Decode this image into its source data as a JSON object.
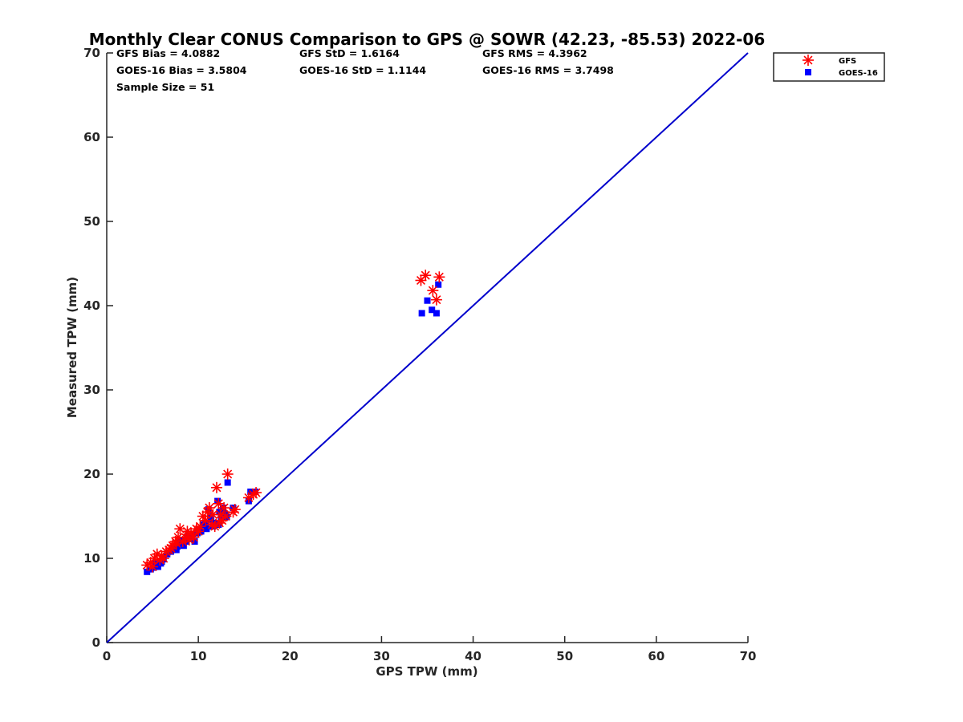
{
  "chart_data": {
    "type": "scatter",
    "title": "Monthly Clear CONUS Comparison to GPS @ SOWR (42.23, -85.53) 2022-06",
    "xlabel": "GPS TPW (mm)",
    "ylabel": "Measured TPW (mm)",
    "xlim": [
      0,
      70
    ],
    "ylim": [
      0,
      70
    ],
    "xticks": [
      0,
      10,
      20,
      30,
      40,
      50,
      60,
      70
    ],
    "yticks": [
      0,
      10,
      20,
      30,
      40,
      50,
      60,
      70
    ],
    "grid": false,
    "legend_position": "outside-top-right",
    "stats": {
      "gfs_bias": "GFS Bias = 4.0882",
      "gfs_std": "GFS StD = 1.6164",
      "gfs_rms": "GFS RMS = 4.3962",
      "goes_bias": "GOES-16 Bias = 3.5804",
      "goes_std": "GOES-16 StD = 1.1144",
      "goes_rms": "GOES-16 RMS = 3.7498",
      "sample_size": "Sample Size = 51"
    },
    "reference_line": {
      "x": [
        0,
        70
      ],
      "y": [
        0,
        70
      ],
      "color": "#0000cc"
    },
    "series": [
      {
        "name": "GFS",
        "marker": "asterisk",
        "color": "#ff0000",
        "points": [
          [
            4.4,
            9.2
          ],
          [
            4.8,
            9.5
          ],
          [
            5.2,
            10.0
          ],
          [
            5.5,
            10.5
          ],
          [
            5.8,
            9.8
          ],
          [
            6.0,
            10.3
          ],
          [
            6.5,
            10.8
          ],
          [
            6.8,
            11.0
          ],
          [
            7.2,
            11.5
          ],
          [
            7.5,
            12.0
          ],
          [
            7.8,
            12.5
          ],
          [
            8.0,
            13.5
          ],
          [
            8.3,
            12.0
          ],
          [
            8.6,
            12.5
          ],
          [
            8.9,
            12.8
          ],
          [
            9.2,
            13.0
          ],
          [
            9.5,
            12.5
          ],
          [
            9.8,
            13.5
          ],
          [
            10.2,
            13.8
          ],
          [
            10.5,
            15.0
          ],
          [
            10.8,
            14.5
          ],
          [
            11.0,
            15.5
          ],
          [
            11.2,
            16.0
          ],
          [
            11.5,
            14.0
          ],
          [
            11.8,
            13.8
          ],
          [
            12.0,
            18.4
          ],
          [
            12.2,
            16.5
          ],
          [
            12.4,
            15.2
          ],
          [
            12.6,
            14.5
          ],
          [
            12.8,
            16.0
          ],
          [
            13.2,
            20.0
          ],
          [
            13.8,
            15.5
          ],
          [
            14.0,
            15.8
          ],
          [
            15.5,
            17.2
          ],
          [
            16.0,
            17.6
          ],
          [
            16.3,
            17.8
          ],
          [
            34.3,
            43.0
          ],
          [
            34.8,
            43.6
          ],
          [
            35.6,
            41.8
          ],
          [
            36.0,
            40.7
          ],
          [
            36.3,
            43.4
          ],
          [
            6.2,
            10.0
          ],
          [
            7.0,
            11.2
          ],
          [
            9.0,
            12.2
          ],
          [
            10.0,
            13.2
          ],
          [
            11.6,
            15.2
          ],
          [
            5.0,
            9.0
          ],
          [
            7.6,
            11.8
          ],
          [
            12.3,
            14.2
          ],
          [
            13.0,
            15.0
          ],
          [
            8.8,
            13.2
          ]
        ]
      },
      {
        "name": "GOES-16",
        "marker": "square",
        "color": "#0000ff",
        "points": [
          [
            4.4,
            8.4
          ],
          [
            4.8,
            8.7
          ],
          [
            5.3,
            9.5
          ],
          [
            5.6,
            9.0
          ],
          [
            5.9,
            9.4
          ],
          [
            6.2,
            9.9
          ],
          [
            6.6,
            10.5
          ],
          [
            7.0,
            10.8
          ],
          [
            7.3,
            11.2
          ],
          [
            7.6,
            11.0
          ],
          [
            7.9,
            11.8
          ],
          [
            8.1,
            12.2
          ],
          [
            8.4,
            11.5
          ],
          [
            8.7,
            12.0
          ],
          [
            9.0,
            12.3
          ],
          [
            9.3,
            12.6
          ],
          [
            9.6,
            12.0
          ],
          [
            9.9,
            13.0
          ],
          [
            10.3,
            13.2
          ],
          [
            10.6,
            14.0
          ],
          [
            10.9,
            13.5
          ],
          [
            11.1,
            15.8
          ],
          [
            11.3,
            15.0
          ],
          [
            11.6,
            13.8
          ],
          [
            11.9,
            14.2
          ],
          [
            12.1,
            16.8
          ],
          [
            12.3,
            15.5
          ],
          [
            12.5,
            14.8
          ],
          [
            12.7,
            16.0
          ],
          [
            12.9,
            15.3
          ],
          [
            13.2,
            19.0
          ],
          [
            13.8,
            16.0
          ],
          [
            15.5,
            16.8
          ],
          [
            15.7,
            17.9
          ],
          [
            16.2,
            17.9
          ],
          [
            34.4,
            39.1
          ],
          [
            35.0,
            40.6
          ],
          [
            35.5,
            39.5
          ],
          [
            36.0,
            39.1
          ],
          [
            36.2,
            42.5
          ],
          [
            6.0,
            9.6
          ],
          [
            7.1,
            11.0
          ],
          [
            8.8,
            12.6
          ],
          [
            10.1,
            13.4
          ],
          [
            11.4,
            14.6
          ],
          [
            5.1,
            8.9
          ],
          [
            7.7,
            11.4
          ],
          [
            12.2,
            14.0
          ],
          [
            13.1,
            14.9
          ],
          [
            9.4,
            12.9
          ],
          [
            10.8,
            14.2
          ]
        ]
      }
    ]
  }
}
